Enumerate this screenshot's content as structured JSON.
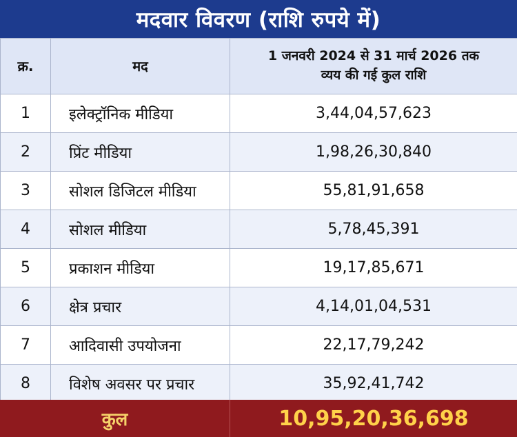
{
  "title": "मदवार विवरण (राशि रुपये में)",
  "header": {
    "serial": "क्र.",
    "item": "मद",
    "amount_line1": "1 जनवरी 2024 से 31 मार्च 2026 तक",
    "amount_line2": "व्यय की गई कुल राशि"
  },
  "rows": [
    {
      "sn": "1",
      "item": "इलेक्ट्रॉनिक मीडिया",
      "amount": "3,44,04,57,623"
    },
    {
      "sn": "2",
      "item": "प्रिंट मीडिया",
      "amount": "1,98,26,30,840"
    },
    {
      "sn": "3",
      "item": "सोशल डिजिटल मीडिया",
      "amount": "55,81,91,658"
    },
    {
      "sn": "4",
      "item": "सोशल मीडिया",
      "amount": "5,78,45,391"
    },
    {
      "sn": "5",
      "item": "प्रकाशन मीडिया",
      "amount": "19,17,85,671"
    },
    {
      "sn": "6",
      "item": "क्षेत्र प्रचार",
      "amount": "4,14,01,04,531"
    },
    {
      "sn": "7",
      "item": "आदिवासी उपयोजना",
      "amount": "22,17,79,242"
    },
    {
      "sn": "8",
      "item": "विशेष अवसर पर प्रचार",
      "amount": "35,92,41,742"
    }
  ],
  "total": {
    "label": "कुल",
    "value": "10,95,20,36,698"
  },
  "colors": {
    "title_bg": "#1d3b8e",
    "header_bg": "#dfe6f6",
    "total_bg": "#8f1a1e",
    "total_text": "#ffd24a"
  }
}
